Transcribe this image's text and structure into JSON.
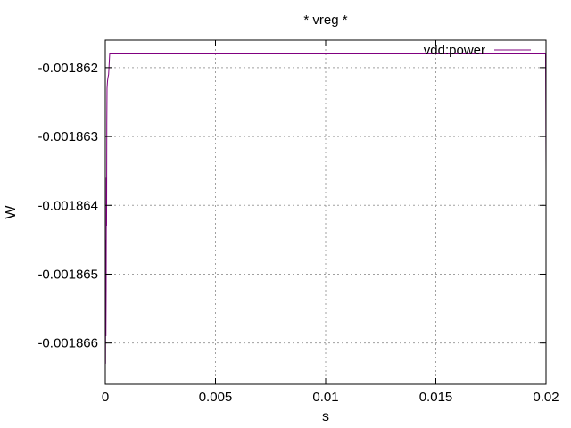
{
  "chart_data": {
    "type": "line",
    "title": "* vreg *",
    "xlabel": "s",
    "ylabel": "W",
    "xlim": [
      0,
      0.02
    ],
    "ylim": [
      -0.0018666,
      -0.0018616
    ],
    "xticks": [
      {
        "value": 0,
        "label": "0"
      },
      {
        "value": 0.005,
        "label": "0.005"
      },
      {
        "value": 0.01,
        "label": "0.01"
      },
      {
        "value": 0.015,
        "label": "0.015"
      },
      {
        "value": 0.02,
        "label": "0.02"
      }
    ],
    "yticks": [
      {
        "value": -0.001862,
        "label": "-0.001862"
      },
      {
        "value": -0.001863,
        "label": "-0.001863"
      },
      {
        "value": -0.001864,
        "label": "-0.001864"
      },
      {
        "value": -0.001865,
        "label": "-0.001865"
      },
      {
        "value": -0.001866,
        "label": "-0.001866"
      }
    ],
    "grid": true,
    "legend_position": "top-right",
    "series": [
      {
        "name": "vdd:power",
        "color": "#800080",
        "x": [
          0,
          5e-06,
          1e-05,
          2e-05,
          3e-05,
          4e-05,
          5e-05,
          6e-05,
          7e-05,
          8e-05,
          0.0001,
          0.00012,
          0.00015,
          0.0002,
          0.0003,
          0.019,
          0.0198,
          0.01994,
          0.01996,
          0.01998,
          0.019985,
          0.01999,
          0.019995,
          0.02
        ],
        "y": [
          -0.0018663,
          -0.0018655,
          -0.0018663,
          -0.0018645,
          -0.0018659,
          -0.0018652,
          -0.0018636,
          -0.0018643,
          -0.0018628,
          -0.0018623,
          -0.0018622,
          -0.00186215,
          -0.0018621,
          -0.0018618,
          -0.0018618,
          -0.0018618,
          -0.0018618,
          -0.0018618,
          -0.0018618,
          -0.0018618,
          -0.0018622,
          -0.0018626,
          -0.0018631,
          -0.0018635
        ]
      }
    ]
  }
}
